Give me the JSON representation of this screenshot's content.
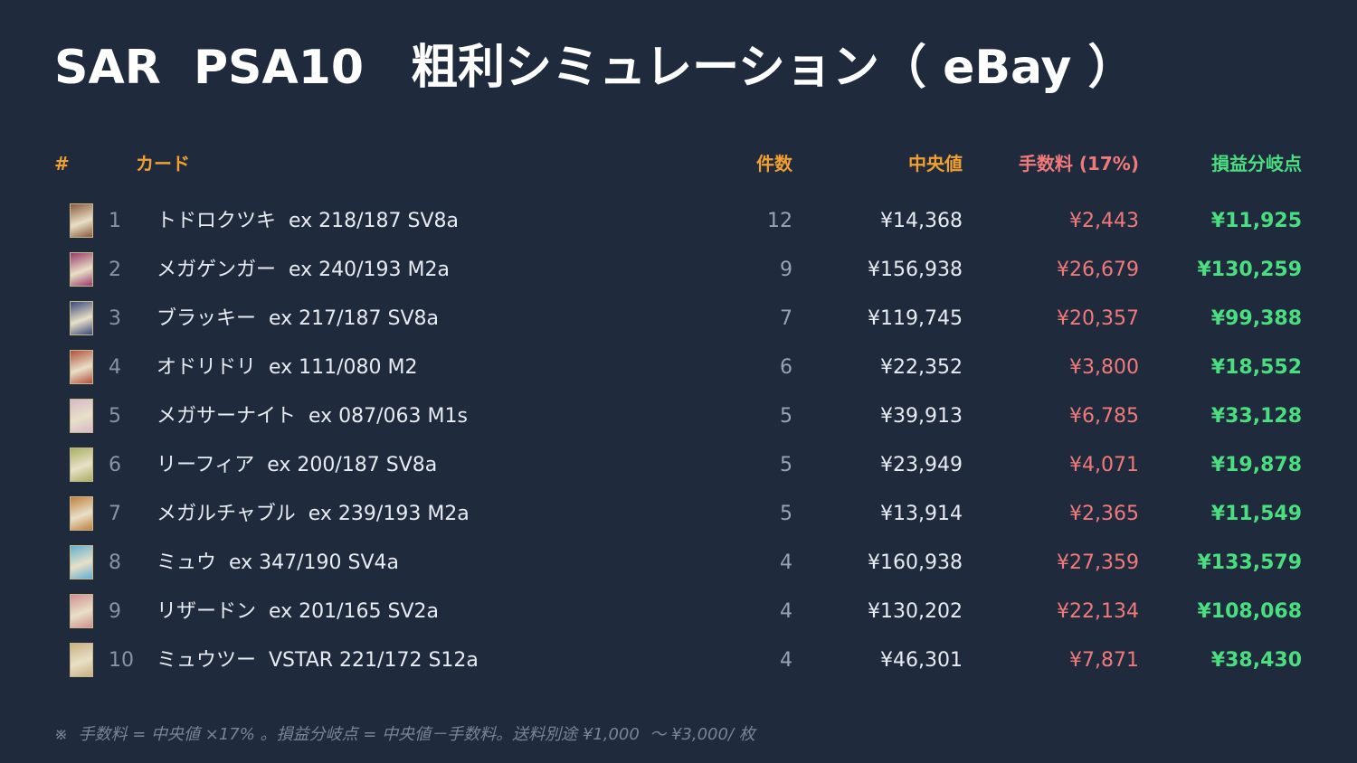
{
  "header": {
    "title": "SAR  PSA10　粗利シミュレーション（ eBay ）"
  },
  "table": {
    "headers": [
      "#",
      "カード",
      "件数",
      "中央値",
      "手数料 (17%)",
      "損益分岐点"
    ],
    "rows": [
      [
        1,
        "トドロクツキ  ex 218/187 SV8a",
        12,
        "¥14,368",
        "¥2,443",
        "¥11,925"
      ],
      [
        2,
        "メガゲンガー  ex 240/193 M2a",
        9,
        "¥156,938",
        "¥26,679",
        "¥130,259"
      ],
      [
        3,
        "ブラッキー  ex 217/187 SV8a",
        7,
        "¥119,745",
        "¥20,357",
        "¥99,388"
      ],
      [
        4,
        "オドリドリ  ex 111/080 M2",
        6,
        "¥22,352",
        "¥3,800",
        "¥18,552"
      ],
      [
        5,
        "メガサーナイト  ex 087/063 M1s",
        5,
        "¥39,913",
        "¥6,785",
        "¥33,128"
      ],
      [
        6,
        "リーフィア  ex 200/187 SV8a",
        5,
        "¥23,949",
        "¥4,071",
        "¥19,878"
      ],
      [
        7,
        "メガルチャブル  ex 239/193 M2a",
        5,
        "¥13,914",
        "¥2,365",
        "¥11,549"
      ],
      [
        8,
        "ミュウ  ex 347/190 SV4a",
        4,
        "¥160,938",
        "¥27,359",
        "¥133,579"
      ],
      [
        9,
        "リザードン  ex 201/165 SV2a",
        4,
        "¥130,202",
        "¥22,134",
        "¥108,068"
      ],
      [
        10,
        "ミュウツー  VSTAR 221/172 S12a",
        4,
        "¥46,301",
        "¥7,871",
        "¥38,430"
      ]
    ]
  },
  "footnote": "※  手数料 = 中央値 ×17% 。損益分岐点 = 中央値－手数料。送料別途 ¥1,000  〜 ¥3,000/ 枚"
}
